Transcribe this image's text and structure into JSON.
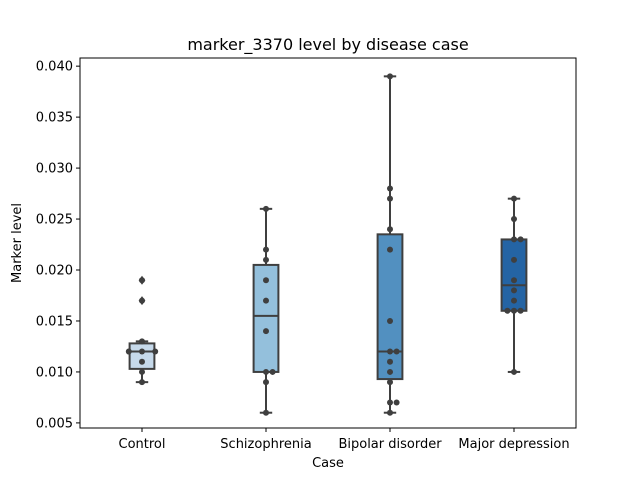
{
  "chart_data": {
    "type": "box",
    "title": "marker_3370 level by disease case",
    "xlabel": "Case",
    "ylabel": "Marker level",
    "ylim": [
      0.0045,
      0.0408
    ],
    "yticks": [
      "0.005",
      "0.010",
      "0.015",
      "0.020",
      "0.025",
      "0.030",
      "0.035",
      "0.040"
    ],
    "grid": false,
    "overlay": "swarm points",
    "categories": [
      "Control",
      "Schizophrenia",
      "Bipolar disorder",
      "Major depression"
    ],
    "colors": [
      "#c6d9ea",
      "#94c0dc",
      "#5290c0",
      "#2464a4"
    ],
    "boxes": [
      {
        "category": "Control",
        "whisker_low": 0.009,
        "q1": 0.0103,
        "median": 0.012,
        "q3": 0.0128,
        "whisker_high": 0.013,
        "outliers": [
          0.017,
          0.019
        ]
      },
      {
        "category": "Schizophrenia",
        "whisker_low": 0.006,
        "q1": 0.01,
        "median": 0.0155,
        "q3": 0.0205,
        "whisker_high": 0.026,
        "outliers": []
      },
      {
        "category": "Bipolar disorder",
        "whisker_low": 0.006,
        "q1": 0.0093,
        "median": 0.012,
        "q3": 0.0235,
        "whisker_high": 0.039,
        "outliers": []
      },
      {
        "category": "Major depression",
        "whisker_low": 0.01,
        "q1": 0.016,
        "median": 0.0185,
        "q3": 0.023,
        "whisker_high": 0.027,
        "outliers": []
      }
    ],
    "points": [
      [
        0.009,
        0.01,
        0.011,
        0.012,
        0.012,
        0.012,
        0.013,
        0.017,
        0.019
      ],
      [
        0.006,
        0.009,
        0.01,
        0.01,
        0.014,
        0.017,
        0.019,
        0.021,
        0.022,
        0.026
      ],
      [
        0.006,
        0.007,
        0.007,
        0.009,
        0.01,
        0.011,
        0.012,
        0.012,
        0.015,
        0.022,
        0.024,
        0.027,
        0.028,
        0.039
      ],
      [
        0.01,
        0.016,
        0.016,
        0.016,
        0.017,
        0.018,
        0.019,
        0.021,
        0.023,
        0.023,
        0.025,
        0.027
      ]
    ]
  }
}
